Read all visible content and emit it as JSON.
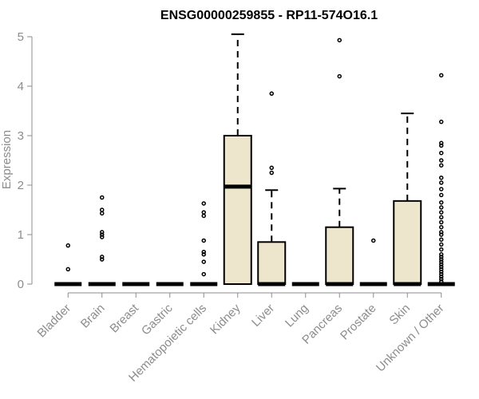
{
  "chart_data": {
    "type": "boxplot",
    "title": "ENSG00000259855 - RP11-574O16.1",
    "xlabel": "",
    "ylabel": "Expression",
    "ylim": [
      0,
      5
    ],
    "yticks": [
      "0",
      "1",
      "2",
      "3",
      "4",
      "5"
    ],
    "grid": false,
    "legend": "none",
    "colors": {
      "box_fill": "#ede6cc",
      "box_stroke": "#000000",
      "axis": "#8c8c8c",
      "title": "#000000"
    },
    "categories": [
      "Bladder",
      "Brain",
      "Breast",
      "Gastric",
      "Hematopoietic cells",
      "Kidney",
      "Liver",
      "Lung",
      "Pancreas",
      "Prostate",
      "Skin",
      "Unknown / Other"
    ],
    "boxes": [
      {
        "q1": 0,
        "median": 0,
        "q3": 0,
        "whisker_low": 0,
        "whisker_high": 0,
        "outliers": [
          0.3,
          0.78
        ]
      },
      {
        "q1": 0,
        "median": 0,
        "q3": 0,
        "whisker_low": 0,
        "whisker_high": 0,
        "outliers": [
          0.5,
          0.55,
          0.95,
          1.0,
          1.05,
          1.43,
          1.5,
          1.75
        ]
      },
      {
        "q1": 0,
        "median": 0,
        "q3": 0,
        "whisker_low": 0,
        "whisker_high": 0,
        "outliers": []
      },
      {
        "q1": 0,
        "median": 0,
        "q3": 0,
        "whisker_low": 0,
        "whisker_high": 0,
        "outliers": []
      },
      {
        "q1": 0,
        "median": 0,
        "q3": 0,
        "whisker_low": 0,
        "whisker_high": 0,
        "outliers": [
          0.2,
          0.45,
          0.6,
          0.65,
          0.88,
          1.38,
          1.45,
          1.63
        ]
      },
      {
        "q1": 0,
        "median": 1.97,
        "q3": 3.0,
        "whisker_low": 0,
        "whisker_high": 5.05,
        "outliers": []
      },
      {
        "q1": 0,
        "median": 0,
        "q3": 0.85,
        "whisker_low": 0,
        "whisker_high": 1.9,
        "outliers": [
          2.25,
          2.35,
          3.85
        ]
      },
      {
        "q1": 0,
        "median": 0,
        "q3": 0,
        "whisker_low": 0,
        "whisker_high": 0,
        "outliers": []
      },
      {
        "q1": 0,
        "median": 0,
        "q3": 1.15,
        "whisker_low": 0,
        "whisker_high": 1.93,
        "outliers": [
          4.2,
          4.93
        ]
      },
      {
        "q1": 0,
        "median": 0,
        "q3": 0,
        "whisker_low": 0,
        "whisker_high": 0,
        "outliers": [
          0.88
        ]
      },
      {
        "q1": 0,
        "median": 0,
        "q3": 1.68,
        "whisker_low": 0,
        "whisker_high": 3.45,
        "outliers": []
      },
      {
        "q1": 0,
        "median": 0,
        "q3": 0,
        "whisker_low": 0,
        "whisker_high": 0,
        "outliers": [
          0.05,
          0.1,
          0.15,
          0.2,
          0.25,
          0.3,
          0.35,
          0.4,
          0.45,
          0.5,
          0.55,
          0.6,
          0.7,
          0.8,
          0.9,
          1.0,
          1.05,
          1.15,
          1.25,
          1.35,
          1.45,
          1.55,
          1.65,
          1.8,
          1.92,
          2.05,
          2.15,
          2.4,
          2.5,
          2.65,
          2.8,
          2.85,
          3.28,
          4.22
        ]
      }
    ]
  }
}
